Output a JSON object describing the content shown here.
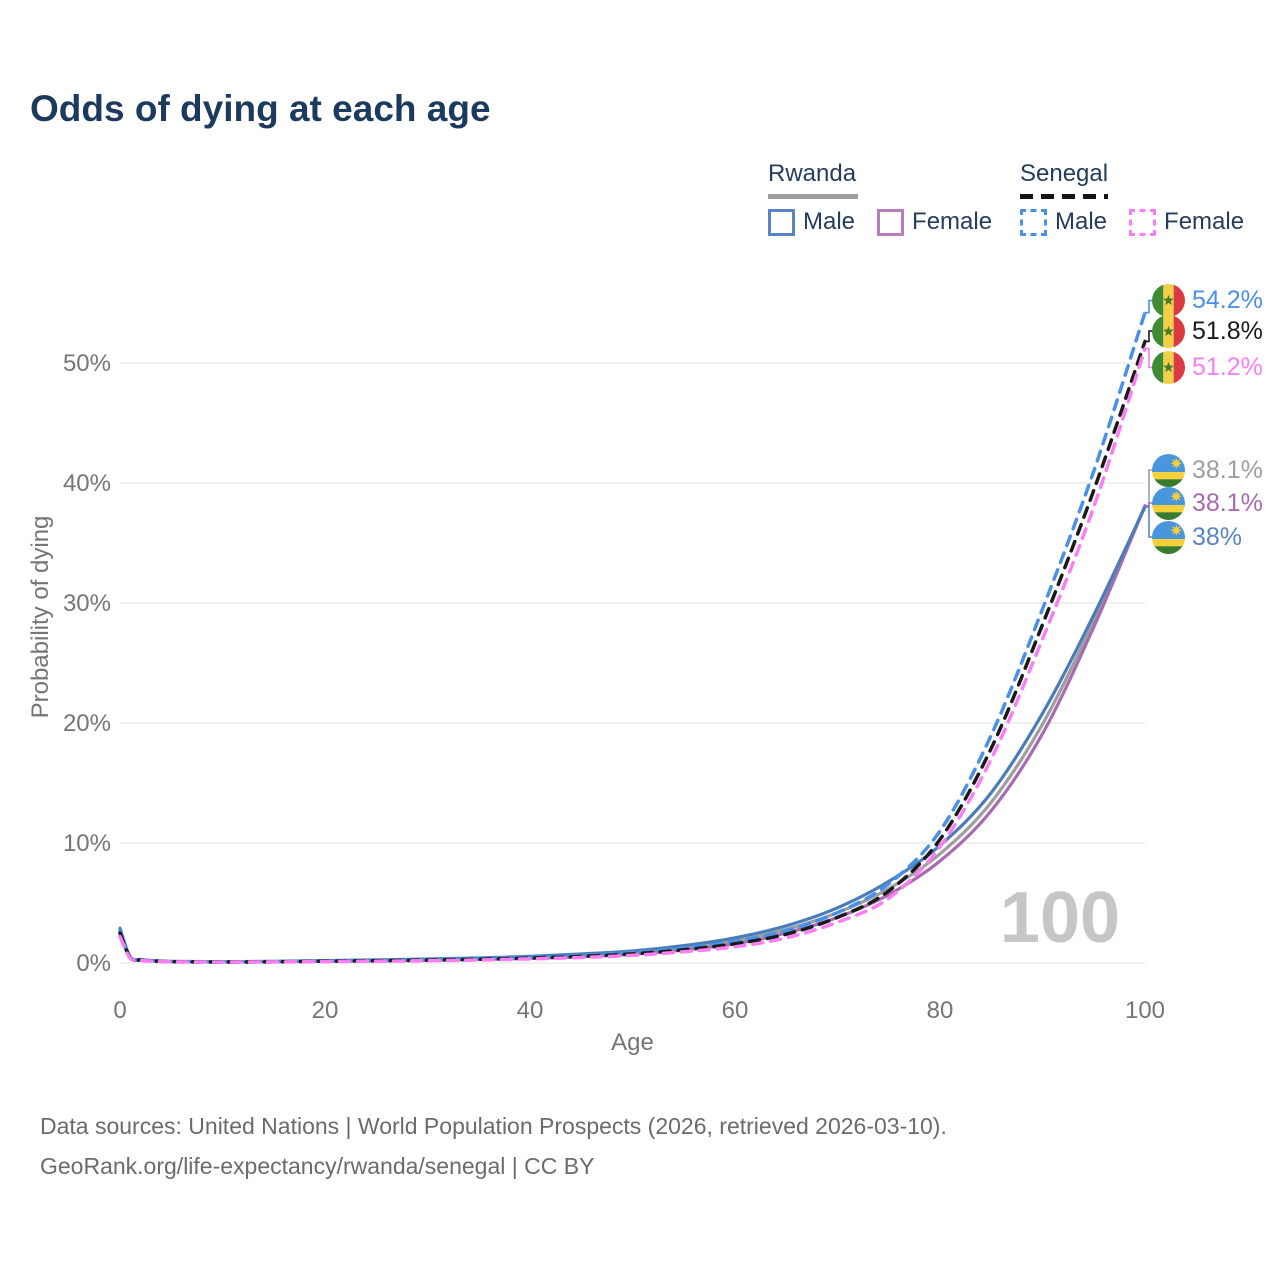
{
  "title": "Odds of dying at each age",
  "legend": {
    "groups": [
      {
        "country": "Rwanda",
        "line_style": "solid",
        "underline_color": "#9e9e9e",
        "items": [
          {
            "label": "Male",
            "color": "#5b84c4",
            "dashed": false
          },
          {
            "label": "Female",
            "color": "#b87fbd",
            "dashed": false
          }
        ]
      },
      {
        "country": "Senegal",
        "line_style": "dashed",
        "underline_color": "#141414",
        "items": [
          {
            "label": "Male",
            "color": "#4a90e8",
            "dashed": true
          },
          {
            "label": "Female",
            "color": "#fb7ff2",
            "dashed": true
          }
        ]
      }
    ]
  },
  "chart_data": {
    "type": "line",
    "title": "Odds of dying at each age",
    "xlabel": "Age",
    "ylabel": "Probability of dying",
    "xlim": [
      0,
      100
    ],
    "ylim": [
      0,
      56
    ],
    "xticks": [
      0,
      20,
      40,
      60,
      80,
      100
    ],
    "yticks": [
      {
        "value": 0,
        "label": "0%"
      },
      {
        "value": 10,
        "label": "10%"
      },
      {
        "value": 20,
        "label": "20%"
      },
      {
        "value": 30,
        "label": "30%"
      },
      {
        "value": 40,
        "label": "40%"
      },
      {
        "value": 50,
        "label": "50%"
      }
    ],
    "grid": "horizontal-only",
    "age_marker": "100",
    "ages": [
      0,
      1,
      2,
      3,
      5,
      10,
      15,
      20,
      25,
      30,
      35,
      40,
      45,
      50,
      55,
      60,
      65,
      70,
      75,
      80,
      85,
      90,
      95,
      100
    ],
    "series": [
      {
        "id": "senegal-male",
        "country": "Senegal",
        "sex": "male",
        "color": "#4a90e8",
        "dashed": true,
        "end_label": {
          "text": "54.2%",
          "color": "#4a90e8",
          "flag": "senegal"
        },
        "values": [
          2.7,
          0.45,
          0.26,
          0.19,
          0.12,
          0.09,
          0.12,
          0.17,
          0.22,
          0.28,
          0.36,
          0.47,
          0.63,
          0.88,
          1.25,
          1.8,
          2.7,
          4.2,
          6.6,
          11.0,
          19.0,
          29.5,
          41.0,
          54.2
        ]
      },
      {
        "id": "senegal-combined",
        "country": "Senegal",
        "sex": "both",
        "color": "#1a1a1a",
        "dashed": true,
        "end_label": {
          "text": "51.8%",
          "color": "#1a1a1a",
          "flag": "senegal"
        },
        "values": [
          2.5,
          0.42,
          0.24,
          0.18,
          0.11,
          0.08,
          0.1,
          0.15,
          0.19,
          0.24,
          0.31,
          0.41,
          0.55,
          0.76,
          1.1,
          1.6,
          2.4,
          3.8,
          6.0,
          10.3,
          17.9,
          28.2,
          39.4,
          51.8
        ]
      },
      {
        "id": "senegal-female",
        "country": "Senegal",
        "sex": "female",
        "color": "#fb7ff2",
        "dashed": true,
        "end_label": {
          "text": "51.2%",
          "color": "#fb7ff2",
          "flag": "senegal"
        },
        "values": [
          2.2,
          0.38,
          0.22,
          0.16,
          0.1,
          0.07,
          0.09,
          0.12,
          0.15,
          0.19,
          0.25,
          0.34,
          0.46,
          0.64,
          0.93,
          1.35,
          2.1,
          3.4,
          5.4,
          9.7,
          17.0,
          27.0,
          38.0,
          51.2
        ]
      },
      {
        "id": "rwanda-combined",
        "country": "Rwanda",
        "sex": "both",
        "color": "#9e9e9e",
        "dashed": false,
        "end_label": {
          "text": "38.1%",
          "color": "#9e9e9e",
          "flag": "rwanda"
        },
        "values": [
          2.65,
          0.46,
          0.27,
          0.2,
          0.12,
          0.1,
          0.12,
          0.17,
          0.22,
          0.28,
          0.35,
          0.46,
          0.63,
          0.87,
          1.27,
          1.85,
          2.8,
          4.2,
          6.2,
          9.1,
          13.4,
          19.9,
          28.5,
          38.1
        ]
      },
      {
        "id": "rwanda-female",
        "country": "Rwanda",
        "sex": "female",
        "color": "#a76cb0",
        "dashed": false,
        "end_label": {
          "text": "38.1%",
          "color": "#a76cb0",
          "flag": "rwanda"
        },
        "values": [
          2.4,
          0.42,
          0.24,
          0.18,
          0.11,
          0.09,
          0.1,
          0.14,
          0.17,
          0.22,
          0.29,
          0.38,
          0.52,
          0.73,
          1.08,
          1.6,
          2.5,
          3.8,
          5.7,
          8.5,
          12.7,
          19.1,
          28.0,
          38.1
        ]
      },
      {
        "id": "rwanda-male",
        "country": "Rwanda",
        "sex": "male",
        "color": "#4a7db8",
        "dashed": false,
        "end_label": {
          "text": "38%",
          "color": "#5b84c4",
          "flag": "rwanda"
        },
        "values": [
          2.9,
          0.5,
          0.3,
          0.22,
          0.14,
          0.11,
          0.14,
          0.2,
          0.26,
          0.33,
          0.42,
          0.55,
          0.75,
          1.0,
          1.45,
          2.1,
          3.1,
          4.6,
          6.8,
          9.8,
          14.2,
          20.8,
          29.0,
          38.0
        ]
      }
    ]
  },
  "colors": {
    "title": "#1c3a5e",
    "axis_text": "#757575",
    "gridline": "#e7e7e7",
    "watermark": "#c6c6c6",
    "footer_text": "#6b6b6b"
  },
  "footer": {
    "line1": "Data sources: United Nations | World Population Prospects (2026, retrieved 2026-03-10).",
    "line2": "GeoRank.org/life-expectancy/rwanda/senegal | CC BY"
  }
}
